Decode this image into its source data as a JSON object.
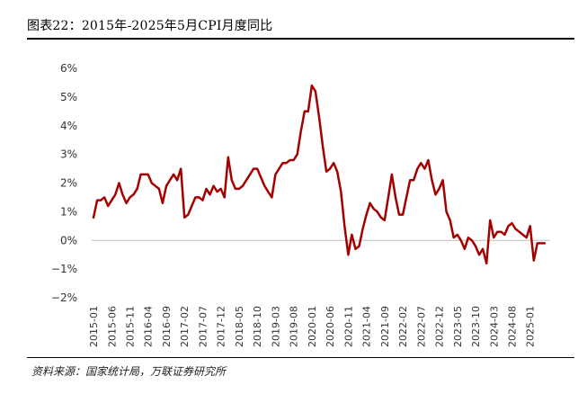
{
  "title": "图表22：2015年-2025年5月CPI月度同比",
  "source": "资料来源：国家统计局，万联证券研究所",
  "colors": {
    "line": "#a50000",
    "axis": "#bfbfbf",
    "text": "#333333"
  },
  "chart_data": {
    "type": "line",
    "title": "图表22：2015年-2025年5月CPI月度同比",
    "xlabel": "",
    "ylabel": "",
    "ylim": [
      -2,
      6
    ],
    "yticks": [
      -2,
      -1,
      0,
      1,
      2,
      3,
      4,
      5,
      6
    ],
    "ytick_labels": [
      "−2%",
      "−1%",
      "0%",
      "1%",
      "2%",
      "3%",
      "4%",
      "5%",
      "6%"
    ],
    "x_tick_labels": [
      "2015-01",
      "2015-06",
      "2015-11",
      "2016-04",
      "2016-09",
      "2017-02",
      "2017-07",
      "2017-12",
      "2018-05",
      "2018-10",
      "2019-03",
      "2019-08",
      "2020-01",
      "2020-06",
      "2020-11",
      "2021-04",
      "2021-09",
      "2022-02",
      "2022-07",
      "2022-12",
      "2023-05",
      "2023-10",
      "2024-03",
      "2024-08",
      "2025-01"
    ],
    "grid": false,
    "legend": "none",
    "series": [
      {
        "start": "2015-01",
        "values": [
          0.8,
          1.4,
          1.4,
          1.5,
          1.2,
          1.4,
          1.6,
          2.0,
          1.6,
          1.3,
          1.5,
          1.6,
          1.8,
          2.3,
          2.3,
          2.3,
          2.0,
          1.9,
          1.8,
          1.3,
          1.9,
          2.1,
          2.3,
          2.1,
          2.5,
          0.8,
          0.9,
          1.2,
          1.5,
          1.5,
          1.4,
          1.8,
          1.6,
          1.9,
          1.7,
          1.8,
          1.5,
          2.9,
          2.1,
          1.8,
          1.8,
          1.9,
          2.1,
          2.3,
          2.5,
          2.5,
          2.2,
          1.9,
          1.7,
          1.5,
          2.3,
          2.5,
          2.7,
          2.7,
          2.8,
          2.8,
          3.0,
          3.8,
          4.5,
          4.5,
          5.4,
          5.2,
          4.3,
          3.3,
          2.4,
          2.5,
          2.7,
          2.4,
          1.7,
          0.5,
          -0.5,
          0.2,
          -0.3,
          -0.2,
          0.4,
          0.9,
          1.3,
          1.1,
          1.0,
          0.8,
          0.7,
          1.5,
          2.3,
          1.5,
          0.9,
          0.9,
          1.5,
          2.1,
          2.1,
          2.5,
          2.7,
          2.5,
          2.8,
          2.1,
          1.6,
          1.8,
          2.1,
          1.0,
          0.7,
          0.1,
          0.2,
          0.0,
          -0.3,
          0.1,
          0.0,
          -0.2,
          -0.5,
          -0.3,
          -0.8,
          0.7,
          0.1,
          0.3,
          0.3,
          0.2,
          0.5,
          0.6,
          0.4,
          0.3,
          0.2,
          0.1,
          0.5,
          -0.7,
          -0.1,
          -0.1,
          -0.1
        ]
      }
    ]
  }
}
